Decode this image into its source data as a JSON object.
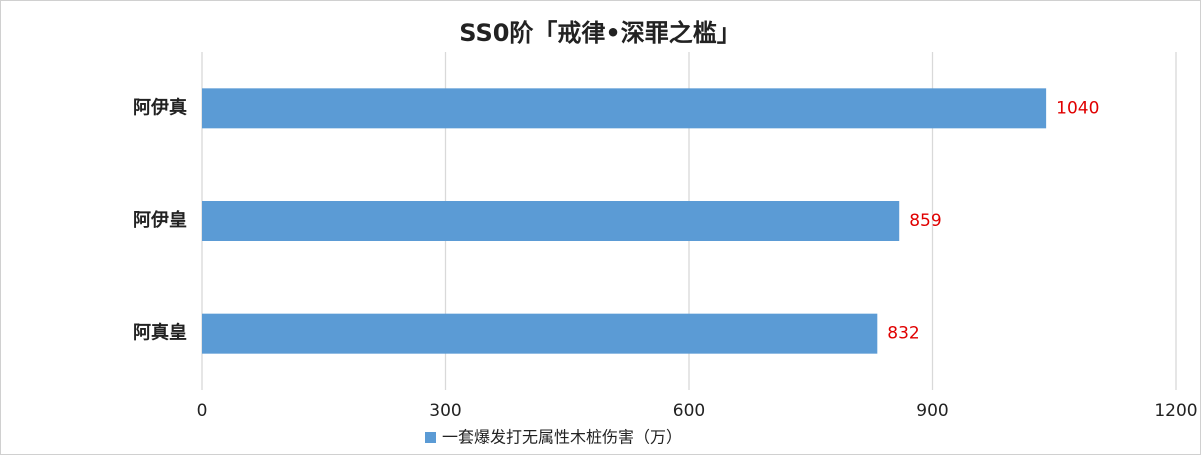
{
  "chart_data": {
    "type": "hbar",
    "title": "SS0阶「戒律•深罪之槛」",
    "categories": [
      "阿伊真",
      "阿伊皇",
      "阿真皇"
    ],
    "series": [
      {
        "name": "一套爆发打无属性木桩伤害（万）",
        "color": "#5b9bd5",
        "values": [
          1040,
          859,
          832
        ]
      }
    ],
    "xlim": [
      0,
      1200
    ],
    "xticks": [
      0,
      300,
      600,
      900,
      1200
    ],
    "grid": true,
    "legend": "bottom",
    "label_color": "#e00000"
  }
}
